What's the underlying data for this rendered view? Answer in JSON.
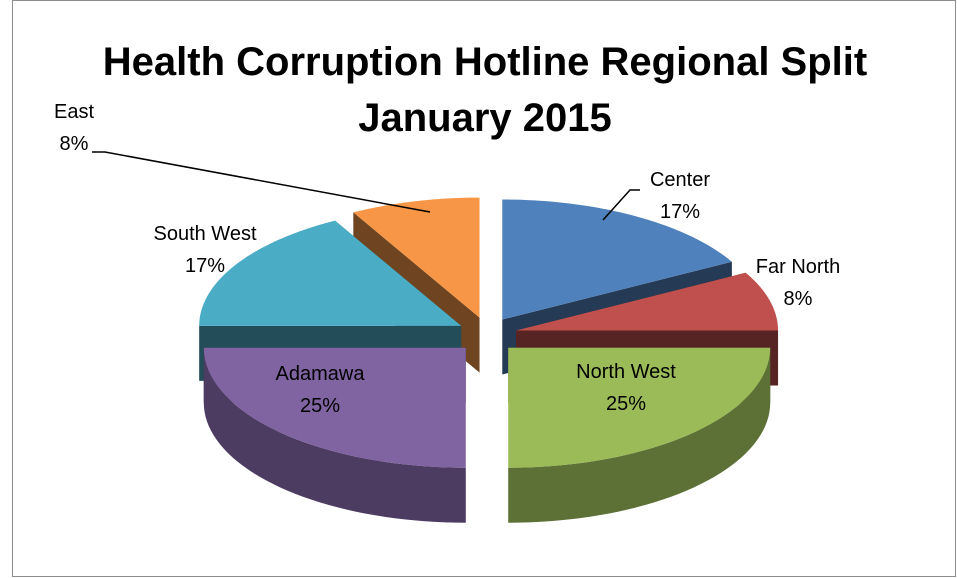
{
  "chart_data": {
    "type": "pie3d",
    "title": "Health Corruption Hotline Regional Split January 2015",
    "categories": [
      "Center",
      "Far North",
      "North West",
      "Adamawa",
      "South West",
      "East"
    ],
    "values": [
      17,
      8,
      25,
      25,
      17,
      8
    ],
    "value_labels": [
      "17%",
      "8%",
      "25%",
      "25%",
      "17%",
      "8%"
    ],
    "colors": [
      "#4f81bd",
      "#c0504d",
      "#9bbb59",
      "#8064a2",
      "#4bacc6",
      "#f79646"
    ]
  }
}
